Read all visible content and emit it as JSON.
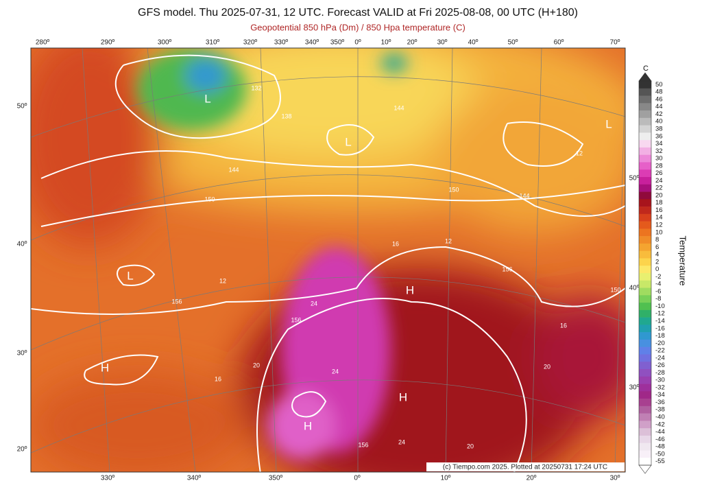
{
  "header": {
    "title": "GFS model. Thu 2025-07-31, 12 UTC. Forecast VALID at Fri 2025-08-08, 00 UTC (H+180)",
    "subtitle": "Geopotential 850 hPa (Dm) / 850 Hpa temperature (C)"
  },
  "map": {
    "top_lon_labels": [
      "280º",
      "290º",
      "300º",
      "310º",
      "320º",
      "330º",
      "340º",
      "350º",
      "0º",
      "10º",
      "20º",
      "30º",
      "40º",
      "50º",
      "60º",
      "70º"
    ],
    "bottom_lon_labels": [
      "330º",
      "340º",
      "350º",
      "0º",
      "10º",
      "20º",
      "30º"
    ],
    "left_lat_labels": [
      "50º",
      "40º",
      "30º",
      "20º"
    ],
    "right_lat_labels": [
      "50º",
      "40º",
      "30º"
    ],
    "contour_labels": [
      "132",
      "138",
      "144",
      "144",
      "150",
      "150",
      "144",
      "156",
      "150",
      "156",
      "156",
      "156",
      "12",
      "12",
      "12",
      "16",
      "16",
      "20",
      "24",
      "24",
      "24",
      "20",
      "20",
      "16"
    ],
    "pressure_centers": [
      "L",
      "L",
      "L",
      "L",
      "H",
      "H",
      "H",
      "H"
    ]
  },
  "colorbar": {
    "unit": "C",
    "label": "Temperature",
    "ticks": [
      50,
      48,
      46,
      44,
      42,
      40,
      38,
      36,
      34,
      32,
      30,
      28,
      26,
      24,
      22,
      20,
      18,
      16,
      14,
      12,
      10,
      8,
      6,
      4,
      2,
      0,
      -2,
      -4,
      -6,
      -8,
      -10,
      -12,
      -14,
      -16,
      -18,
      -20,
      -22,
      -24,
      -26,
      -28,
      -30,
      -32,
      -34,
      -36,
      -38,
      -40,
      -42,
      -44,
      -46,
      -48,
      -50,
      -55
    ],
    "colors": [
      "#333333",
      "#555555",
      "#6e6e6e",
      "#888888",
      "#a0a0a0",
      "#bbbbbb",
      "#d4d4d4",
      "#eeeeee",
      "#f8d8f0",
      "#f2b0e4",
      "#ec88d8",
      "#e660c8",
      "#dc3cb4",
      "#c8209c",
      "#a8107c",
      "#900a3c",
      "#a8141c",
      "#c0281c",
      "#d8401c",
      "#e45a1c",
      "#ec7420",
      "#f08c28",
      "#f4a430",
      "#f8bc3c",
      "#fcd44c",
      "#fce868",
      "#e8f070",
      "#c8e868",
      "#a0dc60",
      "#78d058",
      "#50c050",
      "#30b068",
      "#20a890",
      "#20a0b0",
      "#3098d0",
      "#4890e0",
      "#6080e8",
      "#7070e0",
      "#8060d0",
      "#9050c0",
      "#9a40b0",
      "#9e309c",
      "#a02888",
      "#a84090",
      "#b060a0",
      "#c080b4",
      "#d0a0c8",
      "#dcc0d8",
      "#e8d8e8",
      "#f0e8f0",
      "#f8f0f8",
      "#ffffff"
    ]
  },
  "footer": {
    "credit": "(c) Tiempo.com 2025. Plotted at 20250731 17:24 UTC"
  }
}
